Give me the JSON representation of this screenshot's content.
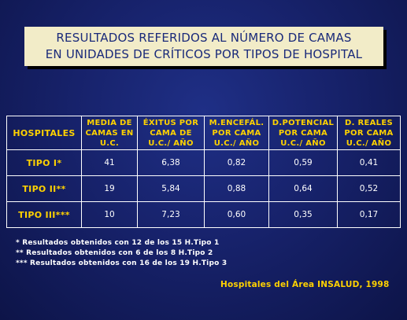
{
  "title": {
    "line1": "RESULTADOS REFERIDOS AL NÚMERO DE CAMAS",
    "line2": "EN UNIDADES DE CRÍTICOS POR TIPOS DE HOSPITAL"
  },
  "table": {
    "header_hospitales": "HOSPITALES",
    "columns": [
      {
        "line1": "MEDIA DE",
        "line2": "CAMAS EN",
        "line3": "U.C."
      },
      {
        "line1": "ÉXITUS POR",
        "line2": "CAMA DE",
        "line3": "U.C./ AÑO"
      },
      {
        "line1": "M.ENCEFÁL.",
        "line2": "POR CAMA",
        "line3": "U.C./ AÑO"
      },
      {
        "line1": "D.POTENCIAL",
        "line2": "POR CAMA",
        "line3": "U.C./ AÑO"
      },
      {
        "line1": "D. REALES",
        "line2": "POR CAMA",
        "line3": "U.C./ AÑO"
      }
    ],
    "rows": [
      {
        "name": "TIPO I*",
        "values": [
          "41",
          "6,38",
          "0,82",
          "0,59",
          "0,41"
        ]
      },
      {
        "name": "TIPO II**",
        "values": [
          "19",
          "5,84",
          "0,88",
          "0,64",
          "0,52"
        ]
      },
      {
        "name": "TIPO III***",
        "values": [
          "10",
          "7,23",
          "0,60",
          "0,35",
          "0,17"
        ]
      }
    ]
  },
  "footnotes": [
    "* Resultados obtenidos con 12 de los 15 H.Tipo 1",
    "** Resultados obtenidos con 6 de los 8 H.Tipo 2",
    "*** Resultados obtenidos con 16 de los 19 H.Tipo 3"
  ],
  "source": "Hospitales del Área INSALUD, 1998",
  "colors": {
    "background": "#17226b",
    "title_box": "#f2ecc8",
    "title_text": "#1a2a7a",
    "accent_yellow": "#ffd200",
    "text_white": "#ffffff"
  }
}
